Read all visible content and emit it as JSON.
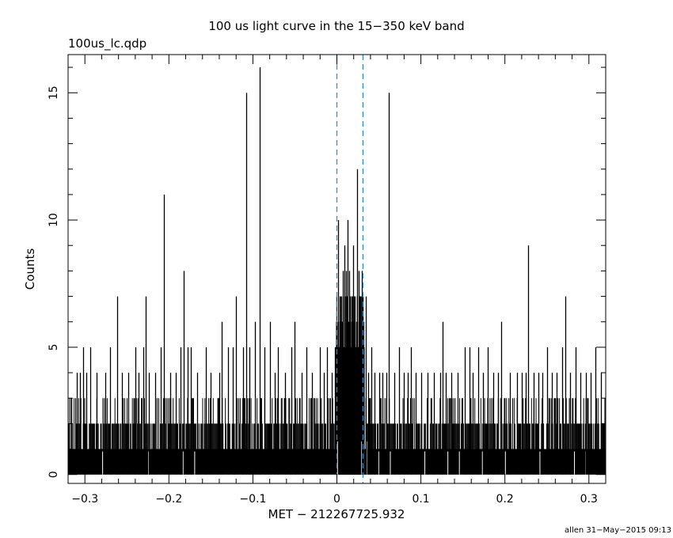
{
  "chart_data": {
    "type": "bar",
    "title": "100 us light curve in the 15−350 keV band",
    "file_label": "100us_lc.qdp",
    "xlabel": "MET − 212267725.932",
    "ylabel": "Counts",
    "footer": "allen 31−May−2015 09:13",
    "xlim": [
      -0.32,
      0.32
    ],
    "ylim": [
      -0.35,
      16.5
    ],
    "x_ticks": [
      -0.3,
      -0.2,
      -0.1,
      0,
      0.1,
      0.2,
      0.3
    ],
    "x_tick_labels": [
      "−0.3",
      "−0.2",
      "−0.1",
      "0",
      "0.1",
      "0.2",
      "0.3"
    ],
    "y_ticks": [
      0,
      5,
      10,
      15
    ],
    "y_tick_labels": [
      "0",
      "5",
      "10",
      "15"
    ],
    "bin_width": 0.0001,
    "background_level": 1,
    "background_max": 3,
    "burst_interval": [
      -0.001,
      0.033
    ],
    "burst_level": 5,
    "burst_max": 7,
    "vertical_markers": [
      0,
      0.031
    ],
    "marker_color": "#1e8fd8",
    "line_color": "#000000",
    "spikes": [
      {
        "x": -0.31,
        "y": 4
      },
      {
        "x": -0.306,
        "y": 4
      },
      {
        "x": -0.302,
        "y": 5
      },
      {
        "x": -0.298,
        "y": 4
      },
      {
        "x": -0.294,
        "y": 5
      },
      {
        "x": -0.286,
        "y": 4
      },
      {
        "x": -0.276,
        "y": 4
      },
      {
        "x": -0.27,
        "y": 5
      },
      {
        "x": -0.262,
        "y": 7
      },
      {
        "x": -0.256,
        "y": 4
      },
      {
        "x": -0.248,
        "y": 4
      },
      {
        "x": -0.24,
        "y": 5
      },
      {
        "x": -0.236,
        "y": 4
      },
      {
        "x": -0.23,
        "y": 5
      },
      {
        "x": -0.228,
        "y": 7
      },
      {
        "x": -0.224,
        "y": 4
      },
      {
        "x": -0.216,
        "y": 4
      },
      {
        "x": -0.21,
        "y": 5
      },
      {
        "x": -0.206,
        "y": 11
      },
      {
        "x": -0.198,
        "y": 4
      },
      {
        "x": -0.192,
        "y": 4
      },
      {
        "x": -0.186,
        "y": 5
      },
      {
        "x": -0.182,
        "y": 8
      },
      {
        "x": -0.178,
        "y": 5
      },
      {
        "x": -0.174,
        "y": 5
      },
      {
        "x": -0.166,
        "y": 4
      },
      {
        "x": -0.156,
        "y": 5
      },
      {
        "x": -0.15,
        "y": 4
      },
      {
        "x": -0.14,
        "y": 4
      },
      {
        "x": -0.137,
        "y": 6
      },
      {
        "x": -0.13,
        "y": 5
      },
      {
        "x": -0.124,
        "y": 5
      },
      {
        "x": -0.12,
        "y": 7
      },
      {
        "x": -0.112,
        "y": 5
      },
      {
        "x": -0.108,
        "y": 15
      },
      {
        "x": -0.104,
        "y": 5
      },
      {
        "x": -0.098,
        "y": 6
      },
      {
        "x": -0.092,
        "y": 16
      },
      {
        "x": -0.086,
        "y": 5
      },
      {
        "x": -0.08,
        "y": 6
      },
      {
        "x": -0.074,
        "y": 4
      },
      {
        "x": -0.07,
        "y": 5
      },
      {
        "x": -0.062,
        "y": 4
      },
      {
        "x": -0.054,
        "y": 5
      },
      {
        "x": -0.05,
        "y": 6
      },
      {
        "x": -0.042,
        "y": 4
      },
      {
        "x": -0.036,
        "y": 5
      },
      {
        "x": -0.03,
        "y": 4
      },
      {
        "x": -0.02,
        "y": 5
      },
      {
        "x": -0.016,
        "y": 4
      },
      {
        "x": -0.012,
        "y": 5
      },
      {
        "x": -0.006,
        "y": 4
      },
      {
        "x": -0.002,
        "y": 5
      },
      {
        "x": 0.001,
        "y": 10
      },
      {
        "x": 0.003,
        "y": 7
      },
      {
        "x": 0.005,
        "y": 7
      },
      {
        "x": 0.007,
        "y": 8
      },
      {
        "x": 0.009,
        "y": 9
      },
      {
        "x": 0.011,
        "y": 8
      },
      {
        "x": 0.013,
        "y": 10
      },
      {
        "x": 0.015,
        "y": 8
      },
      {
        "x": 0.017,
        "y": 7
      },
      {
        "x": 0.019,
        "y": 9
      },
      {
        "x": 0.021,
        "y": 7
      },
      {
        "x": 0.024,
        "y": 12
      },
      {
        "x": 0.026,
        "y": 8
      },
      {
        "x": 0.028,
        "y": 7
      },
      {
        "x": 0.03,
        "y": 8
      },
      {
        "x": 0.032,
        "y": 6
      },
      {
        "x": 0.034,
        "y": 7
      },
      {
        "x": 0.037,
        "y": 4
      },
      {
        "x": 0.041,
        "y": 5
      },
      {
        "x": 0.045,
        "y": 4
      },
      {
        "x": 0.05,
        "y": 4
      },
      {
        "x": 0.054,
        "y": 4
      },
      {
        "x": 0.059,
        "y": 4
      },
      {
        "x": 0.062,
        "y": 15
      },
      {
        "x": 0.068,
        "y": 4
      },
      {
        "x": 0.074,
        "y": 5
      },
      {
        "x": 0.08,
        "y": 4
      },
      {
        "x": 0.084,
        "y": 4
      },
      {
        "x": 0.088,
        "y": 5
      },
      {
        "x": 0.094,
        "y": 4
      },
      {
        "x": 0.1,
        "y": 4
      },
      {
        "x": 0.108,
        "y": 4
      },
      {
        "x": 0.115,
        "y": 4
      },
      {
        "x": 0.123,
        "y": 4
      },
      {
        "x": 0.126,
        "y": 6
      },
      {
        "x": 0.13,
        "y": 4
      },
      {
        "x": 0.136,
        "y": 4
      },
      {
        "x": 0.144,
        "y": 4
      },
      {
        "x": 0.152,
        "y": 5
      },
      {
        "x": 0.158,
        "y": 5
      },
      {
        "x": 0.162,
        "y": 4
      },
      {
        "x": 0.168,
        "y": 5
      },
      {
        "x": 0.174,
        "y": 4
      },
      {
        "x": 0.18,
        "y": 5
      },
      {
        "x": 0.186,
        "y": 4
      },
      {
        "x": 0.192,
        "y": 4
      },
      {
        "x": 0.196,
        "y": 6
      },
      {
        "x": 0.206,
        "y": 4
      },
      {
        "x": 0.214,
        "y": 4
      },
      {
        "x": 0.22,
        "y": 4
      },
      {
        "x": 0.225,
        "y": 4
      },
      {
        "x": 0.228,
        "y": 9
      },
      {
        "x": 0.234,
        "y": 4
      },
      {
        "x": 0.24,
        "y": 4
      },
      {
        "x": 0.245,
        "y": 4
      },
      {
        "x": 0.25,
        "y": 5
      },
      {
        "x": 0.256,
        "y": 4
      },
      {
        "x": 0.262,
        "y": 4
      },
      {
        "x": 0.268,
        "y": 5
      },
      {
        "x": 0.272,
        "y": 7
      },
      {
        "x": 0.278,
        "y": 4
      },
      {
        "x": 0.284,
        "y": 5
      },
      {
        "x": 0.29,
        "y": 4
      },
      {
        "x": 0.296,
        "y": 4
      },
      {
        "x": 0.302,
        "y": 4
      },
      {
        "x": 0.308,
        "y": 5
      },
      {
        "x": 0.314,
        "y": 4
      }
    ]
  }
}
